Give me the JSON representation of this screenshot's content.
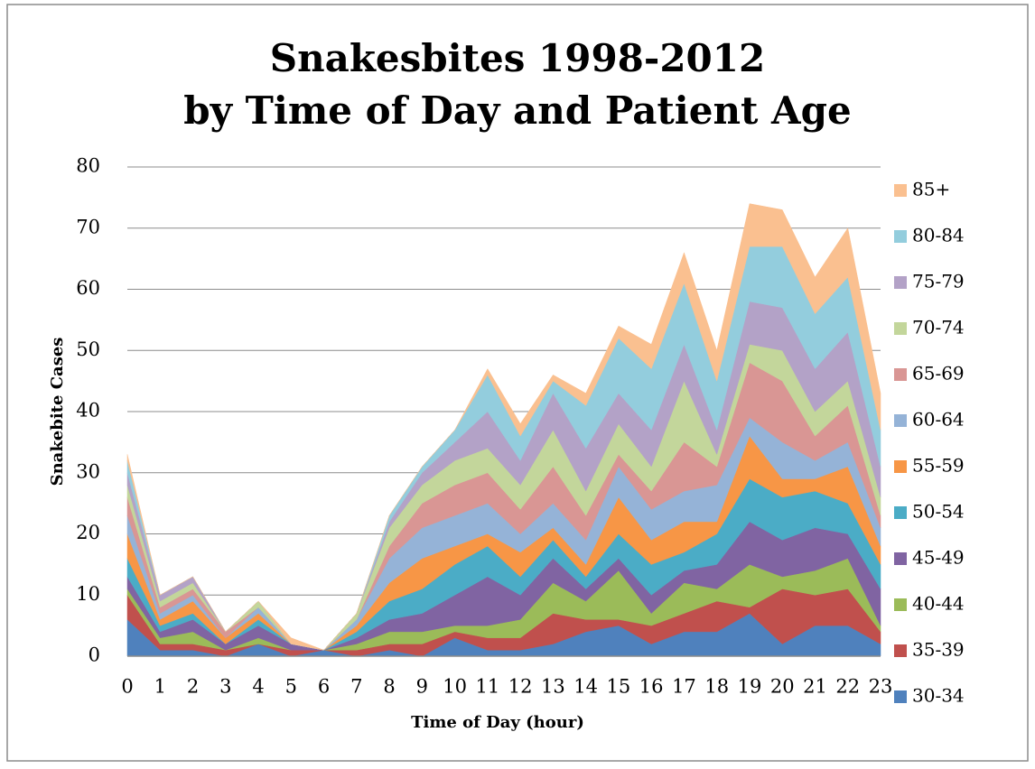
{
  "chart_data": {
    "type": "stacked_area",
    "title": [
      "Snakesbites 1998-2012",
      "by Time of Day and Patient Age"
    ],
    "x_label": "Time of Day (hour)",
    "y_label": "Snakebite Cases",
    "categories": [
      "0",
      "1",
      "2",
      "3",
      "4",
      "5",
      "6",
      "7",
      "8",
      "9",
      "10",
      "11",
      "12",
      "13",
      "14",
      "15",
      "16",
      "17",
      "18",
      "19",
      "20",
      "21",
      "22",
      "23"
    ],
    "ylim": [
      0,
      80
    ],
    "yticks": [
      0,
      10,
      20,
      30,
      40,
      50,
      60,
      70,
      80
    ],
    "grid": true,
    "legend": "right",
    "series": [
      {
        "name": "30-34",
        "color": "#4f81bd",
        "values": [
          6,
          1,
          1,
          0,
          2,
          0,
          1,
          0,
          1,
          0,
          3,
          1,
          1,
          2,
          4,
          5,
          2,
          4,
          4,
          7,
          2,
          5,
          5,
          2
        ]
      },
      {
        "name": "35-39",
        "color": "#c0504d",
        "values": [
          4,
          1,
          1,
          1,
          0,
          1,
          0,
          1,
          1,
          2,
          1,
          2,
          2,
          5,
          2,
          1,
          3,
          3,
          5,
          1,
          9,
          5,
          6,
          2
        ]
      },
      {
        "name": "40-44",
        "color": "#9bbb59",
        "values": [
          1,
          1,
          2,
          0,
          1,
          0,
          0,
          1,
          2,
          2,
          1,
          2,
          3,
          5,
          3,
          8,
          2,
          5,
          2,
          7,
          2,
          4,
          5,
          1
        ]
      },
      {
        "name": "45-49",
        "color": "#8064a2",
        "values": [
          2,
          1,
          2,
          1,
          2,
          1,
          0,
          1,
          2,
          3,
          5,
          8,
          4,
          4,
          2,
          2,
          3,
          2,
          4,
          7,
          6,
          7,
          4,
          6
        ]
      },
      {
        "name": "50-54",
        "color": "#4bacc6",
        "values": [
          3,
          1,
          1,
          0,
          1,
          0,
          0,
          1,
          3,
          4,
          5,
          5,
          3,
          3,
          2,
          4,
          5,
          3,
          5,
          7,
          7,
          6,
          5,
          4
        ]
      },
      {
        "name": "55-59",
        "color": "#f79646",
        "values": [
          4,
          1,
          2,
          1,
          1,
          0,
          0,
          1,
          3,
          5,
          3,
          2,
          4,
          2,
          2,
          6,
          4,
          5,
          2,
          7,
          3,
          2,
          6,
          3
        ]
      },
      {
        "name": "60-64",
        "color": "#95b3d7",
        "values": [
          3,
          1,
          1,
          0,
          1,
          0,
          0,
          1,
          4,
          5,
          5,
          5,
          3,
          4,
          4,
          5,
          5,
          5,
          6,
          3,
          6,
          3,
          4,
          3
        ]
      },
      {
        "name": "65-69",
        "color": "#d99694",
        "values": [
          3,
          1,
          1,
          1,
          0,
          0,
          0,
          0,
          2,
          4,
          5,
          5,
          4,
          6,
          4,
          2,
          3,
          8,
          3,
          9,
          10,
          4,
          6,
          2
        ]
      },
      {
        "name": "70-74",
        "color": "#c3d69b",
        "values": [
          2,
          1,
          1,
          0,
          1,
          0,
          0,
          1,
          3,
          3,
          4,
          4,
          4,
          6,
          4,
          5,
          4,
          10,
          2,
          3,
          5,
          4,
          4,
          3
        ]
      },
      {
        "name": "75-79",
        "color": "#b3a2c7",
        "values": [
          2,
          1,
          1,
          0,
          0,
          0,
          0,
          0,
          1,
          2,
          3,
          6,
          4,
          6,
          7,
          5,
          6,
          6,
          4,
          7,
          7,
          7,
          8,
          5
        ]
      },
      {
        "name": "80-84",
        "color": "#93cddd",
        "values": [
          2,
          0,
          0,
          0,
          0,
          0,
          0,
          0,
          1,
          1,
          2,
          6,
          4,
          2,
          7,
          9,
          10,
          10,
          8,
          9,
          10,
          9,
          9,
          6
        ]
      },
      {
        "name": "85+",
        "color": "#fac090",
        "values": [
          1,
          0,
          0,
          0,
          0,
          1,
          0,
          0,
          0,
          0,
          0,
          1,
          2,
          1,
          2,
          2,
          4,
          5,
          5,
          7,
          6,
          6,
          8,
          6
        ]
      }
    ]
  }
}
